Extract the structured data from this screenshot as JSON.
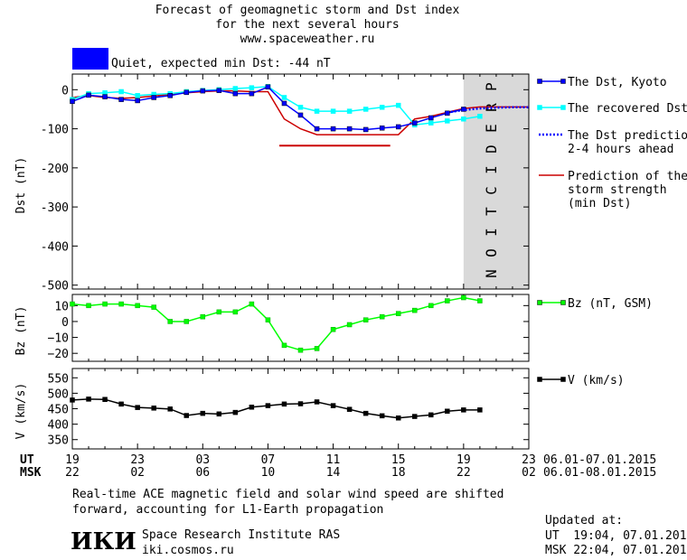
{
  "header": {
    "title_line1": "Forecast of geomagnetic storm and Dst index",
    "title_line2": "for the next several hours",
    "title_line3": "www.spaceweather.ru",
    "status_color": "#0000ff",
    "status_text": "Quiet, expected min Dst: -44 nT"
  },
  "colors": {
    "dst_kyoto": "#0000ff",
    "dst_recovered": "#00ffff",
    "dst_prediction": "#0000ff",
    "storm_strength": "#cc0000",
    "bz": "#00ff00",
    "v": "#000000",
    "prediction_band": "#d9d9d9"
  },
  "chart_data": [
    {
      "type": "line",
      "ylabel": "Dst (nT)",
      "ylim": [
        -510,
        40
      ],
      "yticks": [
        "0",
        "-100",
        "-200",
        "-300",
        "-400",
        "-500"
      ],
      "xlim": [
        19,
        47
      ],
      "shaded_region": {
        "x": [
          43,
          47
        ],
        "label": "PREDICTION"
      },
      "series": [
        {
          "name": "The Dst, Kyoto",
          "x": [
            19,
            20,
            21,
            22,
            23,
            24,
            25,
            26,
            27,
            28,
            29,
            30,
            31,
            32,
            33,
            34,
            35,
            36,
            37,
            38,
            39,
            40,
            41,
            42,
            43
          ],
          "values": [
            -30,
            -14,
            -18,
            -25,
            -28,
            -20,
            -15,
            -7,
            -3,
            -2,
            -10,
            -10,
            7,
            -35,
            -65,
            -100,
            -100,
            -100,
            -102,
            -98,
            -95,
            -85,
            -72,
            -60,
            -50
          ]
        },
        {
          "name": "The recovered Dst",
          "x": [
            19,
            20,
            21,
            22,
            23,
            24,
            25,
            26,
            27,
            28,
            29,
            30,
            31,
            32,
            33,
            34,
            35,
            36,
            37,
            38,
            39,
            40,
            41,
            42,
            43,
            44
          ],
          "values": [
            -25,
            -10,
            -8,
            -5,
            -15,
            -12,
            -10,
            -5,
            -2,
            0,
            3,
            5,
            8,
            -20,
            -45,
            -55,
            -55,
            -55,
            -50,
            -45,
            -40,
            -90,
            -85,
            -80,
            -75,
            -68
          ]
        },
        {
          "name": "The Dst prediction\n2-4 hours ahead",
          "x": [
            42,
            43,
            44,
            45,
            46,
            47
          ],
          "values": [
            -58,
            -52,
            -48,
            -46,
            -45,
            -45
          ]
        },
        {
          "name": "Prediction of the\nstorm strength\n(min Dst)",
          "x": [
            19,
            20,
            21,
            22,
            23,
            24,
            25,
            26,
            27,
            28,
            29,
            30,
            31,
            32,
            33,
            34,
            35,
            36,
            37,
            38,
            39,
            40,
            41,
            42,
            43,
            44,
            45,
            46,
            47
          ],
          "values": [
            -20,
            -15,
            -20,
            -22,
            -20,
            -16,
            -12,
            -8,
            -5,
            -3,
            -3,
            -5,
            -5,
            -75,
            -100,
            -115,
            -115,
            -115,
            -115,
            -115,
            -115,
            -75,
            -68,
            -58,
            -48,
            -44,
            -44,
            -44,
            -44
          ]
        },
        {
          "name": "",
          "x": [
            31.7,
            38.5
          ],
          "values": [
            -143,
            -143
          ]
        }
      ]
    },
    {
      "type": "line",
      "ylabel": "Bz (nT)",
      "ylim": [
        -25,
        17
      ],
      "yticks": [
        "10",
        "0",
        "−10",
        "−20"
      ],
      "xlim": [
        19,
        47
      ],
      "series": [
        {
          "name": "Bz (nT, GSM)",
          "x": [
            19,
            20,
            21,
            22,
            23,
            24,
            25,
            26,
            27,
            28,
            29,
            30,
            31,
            32,
            33,
            34,
            35,
            36,
            37,
            38,
            39,
            40,
            41,
            42,
            43,
            44
          ],
          "values": [
            11,
            10,
            11,
            11,
            10,
            9,
            0,
            0,
            3,
            6,
            6,
            11,
            1,
            -15,
            -18,
            -17,
            -5,
            -2,
            1,
            3,
            5,
            7,
            10,
            13,
            15,
            13
          ]
        }
      ]
    },
    {
      "type": "line",
      "ylabel": "V (km/s)",
      "ylim": [
        320,
        580
      ],
      "yticks": [
        "550",
        "500",
        "450",
        "400",
        "350"
      ],
      "xlim": [
        19,
        47
      ],
      "series": [
        {
          "name": "V (km/s)",
          "x": [
            19,
            20,
            21,
            22,
            23,
            24,
            25,
            26,
            27,
            28,
            29,
            30,
            31,
            32,
            33,
            34,
            35,
            36,
            37,
            38,
            39,
            40,
            41,
            42,
            43,
            44
          ],
          "values": [
            478,
            481,
            480,
            465,
            454,
            452,
            449,
            428,
            435,
            433,
            438,
            455,
            460,
            465,
            466,
            472,
            460,
            448,
            435,
            427,
            420,
            425,
            430,
            442,
            446,
            446
          ]
        }
      ]
    }
  ],
  "axes": {
    "ut_label": "UT",
    "msk_label": "MSK",
    "ut_ticks": [
      "19",
      "23",
      "03",
      "07",
      "11",
      "15",
      "19",
      "23"
    ],
    "msk_ticks": [
      "22",
      "02",
      "06",
      "10",
      "14",
      "18",
      "22",
      "02"
    ],
    "ut_range": "06.01-07.01.2015",
    "msk_range": "06.01-08.01.2015"
  },
  "footer": {
    "note_line1": "Real-time ACE magnetic field and solar wind speed are shifted",
    "note_line2": "forward, accounting for L1-Earth propagation",
    "logo_text": "ИКИ",
    "institute": "Space Research Institute RAS",
    "site": "iki.cosmos.ru",
    "updated_label": "Updated at:",
    "updated_ut": "UT  19:04, 07.01.2015",
    "updated_msk": "MSK 22:04, 07.01.2015"
  }
}
